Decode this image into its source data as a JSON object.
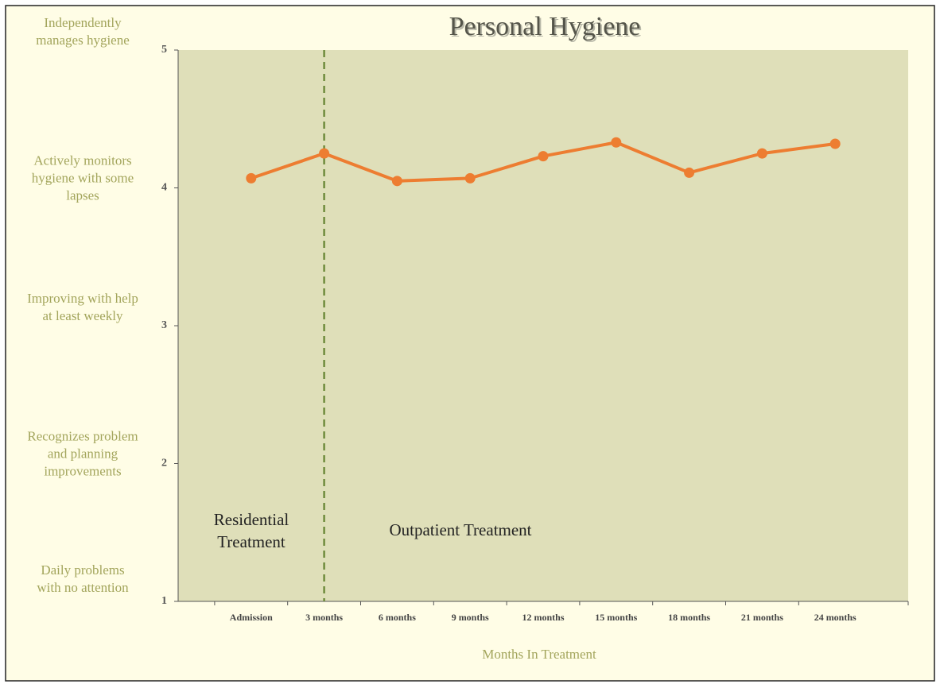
{
  "chart_data": {
    "type": "line",
    "title": "Personal Hygiene",
    "categories": [
      "Admission",
      "3 months",
      "6 months",
      "9 months",
      "12 months",
      "15 months",
      "18 months",
      "21 months",
      "24 months"
    ],
    "series": [
      {
        "name": "Personal Hygiene",
        "color": "#ed7d31",
        "values": [
          4.07,
          4.25,
          4.05,
          4.07,
          4.23,
          4.33,
          4.11,
          4.25,
          4.32
        ]
      }
    ],
    "ylim": [
      1,
      5
    ],
    "yticks": [
      1,
      2,
      3,
      4,
      5
    ],
    "ytick_descriptions": [
      [
        "Daily problems",
        "with no attention"
      ],
      [
        "Recognizes problem",
        "and planning",
        "improvements"
      ],
      [
        "Improving with help",
        "at least weekly"
      ],
      [
        "Actively monitors",
        "hygiene with some",
        "lapses"
      ],
      [
        "Independently",
        "manages hygiene"
      ]
    ],
    "xlabel": "Months In Treatment",
    "divider_category": "3 months",
    "annotations": [
      [
        "Residential",
        "Treatment"
      ],
      [
        "Outpatient Treatment"
      ]
    ]
  }
}
